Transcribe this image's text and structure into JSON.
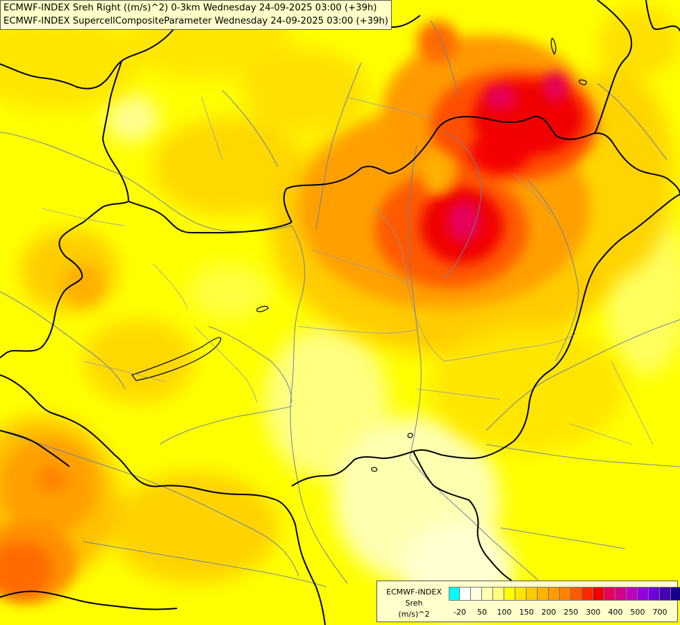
{
  "header": {
    "line1": "ECMWF-INDEX Sreh Right ((m/s)^2) 0-3km Wednesday 24-09-2025 03:00 (+39h)",
    "line2": "ECMWF-INDEX SupercellCompositeParameter Wednesday 24-09-2025 03:00 (+39h)"
  },
  "legend": {
    "title": "ECMWF-INDEX",
    "variable": "Sreh",
    "unit": "(m/s)^2",
    "colors": [
      "#00ffff",
      "#ffffff",
      "#ffffe0",
      "#ffffb0",
      "#ffff80",
      "#ffff00",
      "#ffe600",
      "#ffcc00",
      "#ffb400",
      "#ff9b00",
      "#ff8200",
      "#ff5a00",
      "#ff2800",
      "#f00000",
      "#e6005a",
      "#d2008c",
      "#be00be",
      "#9600dc",
      "#6e00dc",
      "#4600b4",
      "#14008c"
    ],
    "tick_labels": [
      "-20",
      "50",
      "100",
      "150",
      "200",
      "250",
      "300",
      "400",
      "500",
      "700"
    ]
  },
  "map": {
    "fill_color": "#ffff00",
    "border_color": "#000000",
    "river_color": "#6a7fa8"
  }
}
